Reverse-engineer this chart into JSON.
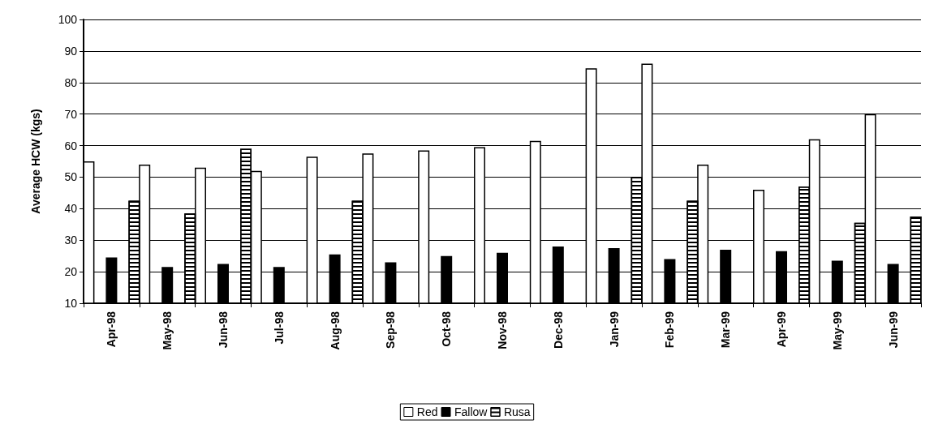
{
  "chart_data": {
    "type": "bar",
    "ylabel": "Average HCW (kgs)",
    "categories": [
      "Apr-98",
      "May-98",
      "Jun-98",
      "Jul-98",
      "Aug-98",
      "Sep-98",
      "Oct-98",
      "Nov-98",
      "Dec-98",
      "Jan-99",
      "Feb-99",
      "Mar-99",
      "Apr-99",
      "May-99",
      "Jun-99"
    ],
    "series": [
      {
        "name": "Red",
        "color": "#ffffff",
        "values": [
          55,
          54,
          53,
          52,
          56.5,
          57.5,
          58.5,
          59.5,
          61.5,
          84.5,
          86,
          54,
          46,
          62,
          70
        ]
      },
      {
        "name": "Fallow",
        "color": "#000000",
        "values": [
          24.5,
          21.5,
          22.5,
          21.5,
          25.5,
          23,
          25,
          26,
          28,
          27.5,
          24,
          27,
          26.5,
          23.5,
          22.5
        ]
      },
      {
        "name": "Rusa",
        "color": "#ffffff",
        "values": [
          42.5,
          38.5,
          59,
          null,
          42.5,
          null,
          null,
          null,
          null,
          50,
          42.5,
          null,
          47,
          35.5,
          37.5
        ]
      }
    ],
    "ylim": [
      10,
      100
    ],
    "yticks": [
      10,
      20,
      30,
      40,
      50,
      60,
      70,
      80,
      90,
      100
    ],
    "grid": "y",
    "legend": "bottom"
  }
}
